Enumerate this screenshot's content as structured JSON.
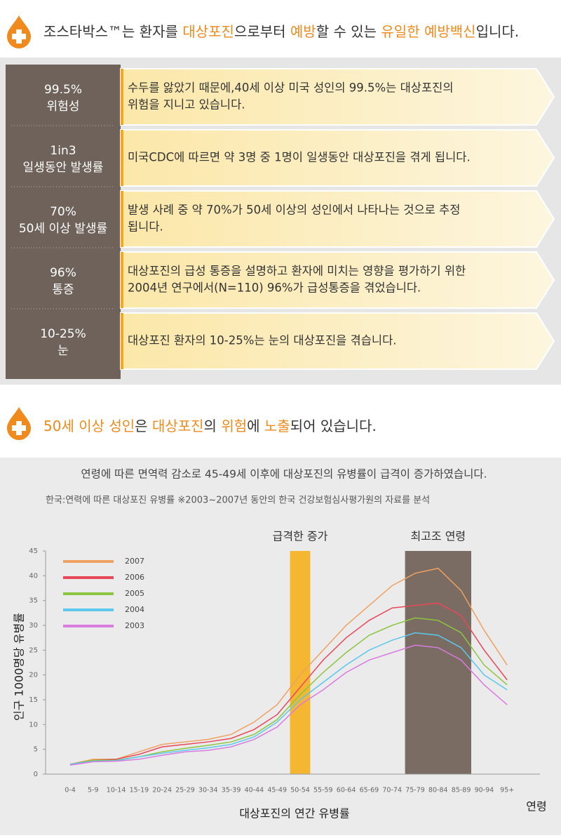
{
  "header": {
    "segments": [
      {
        "text": "조스타박스™는 환자를 ",
        "color": "#333333"
      },
      {
        "text": "대상포진",
        "color": "#f08a1c"
      },
      {
        "text": "으로부터 ",
        "color": "#333333"
      },
      {
        "text": "예방",
        "color": "#f08a1c"
      },
      {
        "text": "할 수 있는 ",
        "color": "#333333"
      },
      {
        "text": "유일한 예방백신",
        "color": "#f08a1c"
      },
      {
        "text": "입니다.",
        "color": "#333333"
      }
    ]
  },
  "facts": [
    {
      "value": "99.5%",
      "label": "위험성",
      "lines": [
        "수두를 앓았기 때문에,40세 이상 미국 성인의 99.5%는 대상포진의",
        "위험을 지니고 있습니다."
      ]
    },
    {
      "value": "1in3",
      "label": "일생동안 발생률",
      "lines": [
        "미국CDC에 따르면 약 3명 중 1명이 일생동안 대상포진을 겪게 됩니다."
      ]
    },
    {
      "value": "70%",
      "label": "50세 이상 발생률",
      "lines": [
        "발생 사례 중 약 70%가 50세 이상의 성인에서 나타나는 것으로 추정",
        "됩니다."
      ]
    },
    {
      "value": "96%",
      "label": "통증",
      "lines": [
        "대상포진의 급성 통증을 설명하고 환자에 미치는 영향을 평가하기 위한",
        "2004년 연구에서(N=110) 96%가 급성통증을 겪었습니다."
      ]
    },
    {
      "value": "10-25%",
      "label": "눈",
      "lines": [
        "대상포진 환자의 10-25%는 눈의 대상포진을 겪습니다."
      ]
    }
  ],
  "section2": {
    "segments": [
      {
        "text": "50세 이상 성인",
        "color": "#f08a1c"
      },
      {
        "text": "은 ",
        "color": "#333333"
      },
      {
        "text": "대상포진",
        "color": "#f08a1c"
      },
      {
        "text": "의 ",
        "color": "#333333"
      },
      {
        "text": "위험",
        "color": "#f08a1c"
      },
      {
        "text": "에 ",
        "color": "#333333"
      },
      {
        "text": "노출",
        "color": "#f08a1c"
      },
      {
        "text": "되어 있습니다.",
        "color": "#333333"
      }
    ]
  },
  "chart_data": {
    "type": "line",
    "title": "연령에 따른 면역력 감소로 45-49세 이후에 대상포진의 유병률이 급격이 증가하였습니다.",
    "subtitle": "한국:연력에 따른 대상포진 유병률   ※2003~2007년 동안의 한국 건강보험심사평가원의 자료를 분석",
    "x_label": "대상포진의 연간 유병률",
    "x_unit": "연령",
    "y_label": "인구 1000명당 유병률",
    "categories": [
      "0-4",
      "5-9",
      "10-14",
      "15-19",
      "20-24",
      "25-29",
      "30-34",
      "35-39",
      "40-44",
      "45-49",
      "50-54",
      "55-59",
      "60-64",
      "65-69",
      "70-74",
      "75-79",
      "80-84",
      "85-89",
      "90-94",
      "95+"
    ],
    "series": [
      {
        "name": "2007",
        "color": "#f0a060",
        "values": [
          2,
          3,
          3,
          4.5,
          6,
          6.5,
          7,
          8,
          10.5,
          14,
          20,
          25,
          30,
          34,
          38,
          40.5,
          41.5,
          37,
          29,
          22
        ]
      },
      {
        "name": "2006",
        "color": "#e8485a",
        "values": [
          2,
          2.8,
          3,
          4,
          5.5,
          6,
          6.5,
          7.2,
          9,
          12,
          17.5,
          23,
          27.5,
          31,
          33.5,
          34,
          34.5,
          32,
          25,
          19
        ]
      },
      {
        "name": "2005",
        "color": "#8cc63f",
        "values": [
          2,
          2.8,
          2.8,
          3.5,
          4.5,
          5.2,
          5.8,
          6.5,
          8,
          11,
          16,
          20.5,
          24.5,
          28,
          30,
          31.5,
          31,
          28.5,
          22,
          18
        ]
      },
      {
        "name": "2004",
        "color": "#5bc8ec",
        "values": [
          2,
          2.6,
          2.7,
          3.5,
          4.2,
          4.8,
          5.3,
          6,
          7.5,
          10.5,
          15,
          18.5,
          22,
          25,
          27,
          28.5,
          28,
          25.5,
          20,
          17
        ]
      },
      {
        "name": "2003",
        "color": "#d87ce0",
        "values": [
          1.8,
          2.5,
          2.6,
          3,
          3.8,
          4.5,
          4.8,
          5.5,
          7,
          9.5,
          14,
          17,
          20.5,
          23,
          24.5,
          26,
          25.5,
          23,
          18,
          14
        ]
      }
    ],
    "ylim": [
      0,
      45
    ],
    "yticks": [
      0,
      5,
      10,
      15,
      20,
      25,
      30,
      35,
      40,
      45
    ],
    "annotations": [
      {
        "label": "급격한 증가",
        "from": "50-54",
        "to": "50-54",
        "color": "#f5b731"
      },
      {
        "label": "최고조 연령",
        "from": "75-79",
        "to": "85-89",
        "color": "#7a6c62"
      }
    ]
  }
}
